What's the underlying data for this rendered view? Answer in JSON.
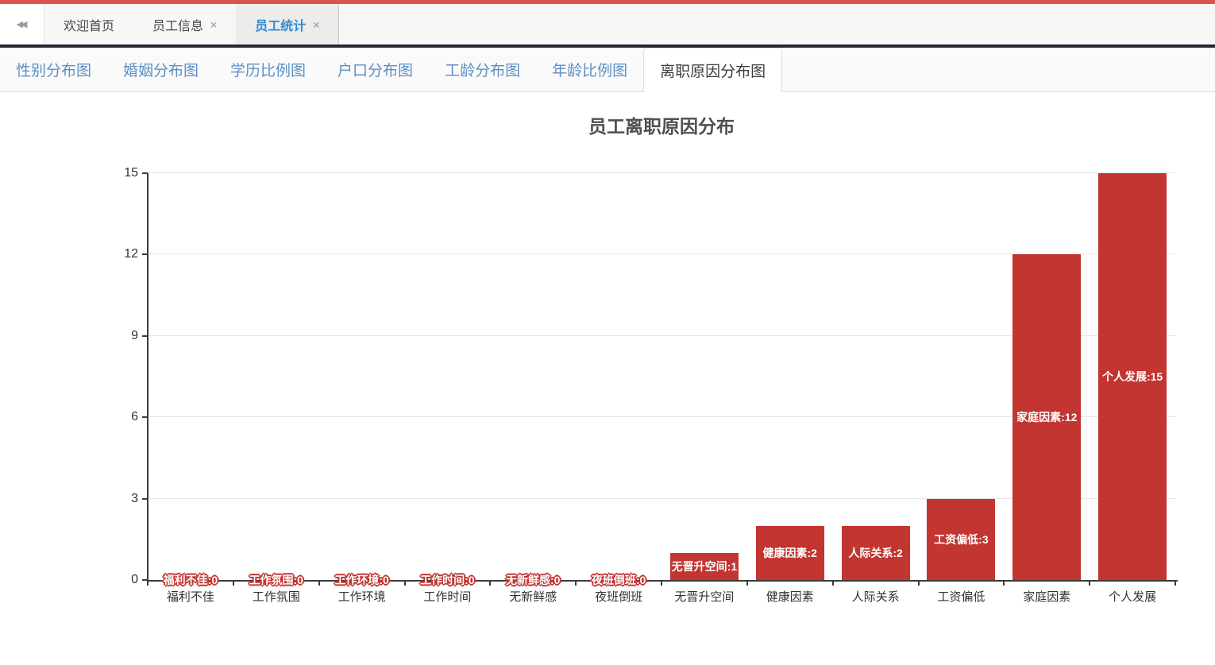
{
  "window": {
    "accent_color": "#d9534f",
    "tab_shadow_color": "#232a33"
  },
  "main_tabs": {
    "collapse_icon": "double-left-arrow",
    "close_glyph": "×",
    "tabs": [
      {
        "label": "欢迎首页",
        "closable": false,
        "active": false
      },
      {
        "label": "员工信息",
        "closable": true,
        "active": false
      },
      {
        "label": "员工统计",
        "closable": true,
        "active": true
      }
    ],
    "active_color": "#2f8bd6"
  },
  "sub_tabs": {
    "items": [
      {
        "label": "性别分布图",
        "active": false
      },
      {
        "label": "婚姻分布图",
        "active": false
      },
      {
        "label": "学历比例图",
        "active": false
      },
      {
        "label": "户口分布图",
        "active": false
      },
      {
        "label": "工龄分布图",
        "active": false
      },
      {
        "label": "年龄比例图",
        "active": false
      },
      {
        "label": "离职原因分布图",
        "active": true
      }
    ],
    "link_color": "#5d8fc4"
  },
  "chart_data": {
    "type": "bar",
    "title": "员工离职原因分布",
    "categories": [
      "福利不佳",
      "工作氛围",
      "工作环境",
      "工作时间",
      "无新鲜感",
      "夜班倒班",
      "无晋升空间",
      "健康因素",
      "人际关系",
      "工资偏低",
      "家庭因素",
      "个人发展"
    ],
    "values": [
      0,
      0,
      0,
      0,
      0,
      0,
      1,
      2,
      2,
      3,
      12,
      15
    ],
    "bar_labels": [
      "福利不佳:0",
      "工作氛围:0",
      "工作环境:0",
      "工作时间:0",
      "无新鲜感:0",
      "夜班倒班:0",
      "无晋升空间:1",
      "健康因素:2",
      "人际关系:2",
      "工资偏低:3",
      "家庭因素:12",
      "个人发展:15"
    ],
    "xlabel": "",
    "ylabel": "",
    "ylim": [
      0,
      15
    ],
    "yticks": [
      0,
      3,
      6,
      9,
      12,
      15
    ],
    "grid": true,
    "legend": "none",
    "bar_color": "#c23531",
    "label_text_color": "#ffffff",
    "label_outline_color": "#c23531"
  }
}
